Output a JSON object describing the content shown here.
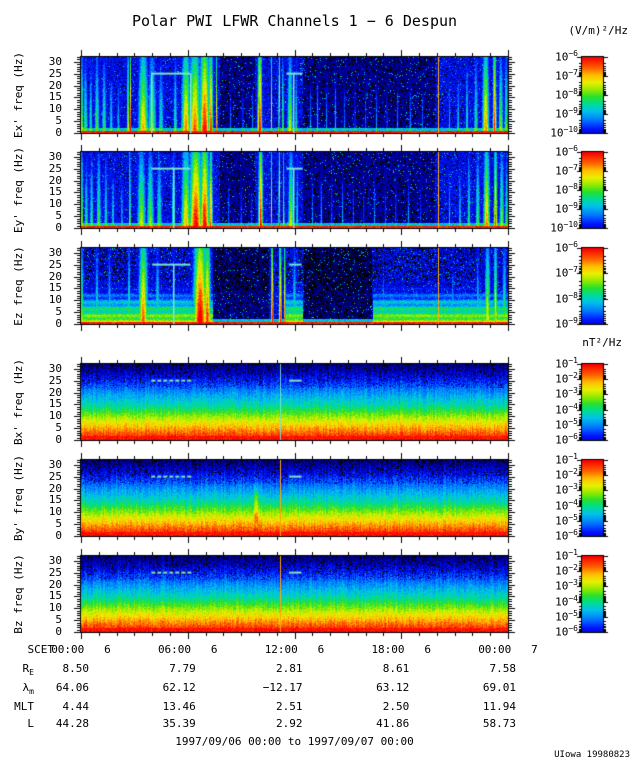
{
  "title": "Polar PWI LFWR Channels 1 − 6 Despun",
  "credit": "UIowa 19980823",
  "footer": {
    "range": "1997/09/06 00:00 to 1997/09/07 00:00"
  },
  "units": {
    "electric": "(V/m)²/Hz",
    "magnetic": "nT²/Hz"
  },
  "axis": {
    "scet_label": "SCET",
    "time_ticks": [
      {
        "time": "00:00",
        "day": "6",
        "hour": 0
      },
      {
        "time": "06:00",
        "day": "6",
        "hour": 6
      },
      {
        "time": "12:00",
        "day": "6",
        "hour": 12
      },
      {
        "time": "18:00",
        "day": "6",
        "hour": 18
      },
      {
        "time": "00:00",
        "day": "7",
        "hour": 24
      }
    ]
  },
  "ephemeris": {
    "rows": [
      {
        "label": "R",
        "sub": "E",
        "values": [
          "8.50",
          "7.79",
          "2.81",
          "8.61",
          "7.58"
        ]
      },
      {
        "label": "λ",
        "sub": "m",
        "values": [
          "64.06",
          "62.12",
          "−12.17",
          "63.12",
          "69.01"
        ]
      },
      {
        "label": "MLT",
        "sub": "",
        "values": [
          "4.44",
          "13.46",
          "2.51",
          "2.50",
          "11.94"
        ]
      },
      {
        "label": "L",
        "sub": "",
        "values": [
          "44.28",
          "35.39",
          "2.92",
          "41.86",
          "58.73"
        ]
      }
    ]
  },
  "chart_data": {
    "type": "heatmap",
    "subtype": "spectrogram-stack",
    "title": "Polar PWI LFWR Channels 1 − 6 Despun",
    "x_axis": {
      "label": "SCET",
      "xlim_hours": [
        0,
        24
      ],
      "major_ticks_hours": [
        0,
        6,
        12,
        18,
        24
      ],
      "minor_tick_hours": 1
    },
    "y_axis": {
      "ylim_hz": [
        0,
        32
      ],
      "major_ticks": [
        0,
        5,
        10,
        15,
        20,
        25,
        30
      ],
      "minor_tick": 1
    },
    "colormap": "rainbow (blue=low, red=high)",
    "panels": [
      {
        "name": "Ex",
        "ylabel": "Ex' freq (Hz)",
        "kind": "electric",
        "seed": 11,
        "colorbar": {
          "unit": "(V/m)²/Hz",
          "exponents": [
            -6,
            -7,
            -8,
            -9,
            -10
          ]
        },
        "features": {
          "streaks": [
            [
              0.05,
              0.06,
              0.7
            ],
            [
              0.25,
              0.1,
              0.55
            ],
            [
              0.55,
              0.08,
              0.5
            ],
            [
              0.9,
              0.1,
              0.6
            ],
            [
              1.3,
              0.1,
              0.55
            ],
            [
              1.7,
              0.08,
              0.45
            ],
            [
              2.1,
              0.06,
              0.4
            ],
            [
              2.65,
              0.06,
              0.75
            ],
            [
              2.78,
              0.03,
              0.95
            ],
            [
              3.5,
              0.22,
              0.8
            ],
            [
              4.0,
              0.18,
              0.65
            ],
            [
              4.5,
              0.12,
              0.5
            ],
            [
              5.3,
              0.08,
              0.55
            ],
            [
              5.9,
              0.2,
              0.85
            ],
            [
              6.4,
              0.25,
              0.9
            ],
            [
              6.95,
              0.22,
              1.0
            ],
            [
              7.3,
              0.1,
              0.95
            ],
            [
              7.62,
              0.04,
              0.85
            ],
            [
              8.4,
              0.04,
              0.3
            ],
            [
              9.1,
              0.04,
              0.3
            ],
            [
              9.65,
              0.04,
              0.35
            ],
            [
              10.05,
              0.1,
              1.0
            ],
            [
              10.7,
              0.03,
              0.85
            ],
            [
              11.15,
              0.04,
              0.95
            ],
            [
              11.35,
              0.03,
              0.8
            ],
            [
              11.75,
              0.12,
              0.7
            ],
            [
              12.1,
              0.06,
              0.5
            ],
            [
              12.9,
              0.03,
              0.35
            ],
            [
              13.3,
              0.04,
              0.4
            ],
            [
              13.8,
              0.03,
              0.35
            ],
            [
              14.3,
              0.04,
              0.4
            ],
            [
              14.8,
              0.03,
              0.35
            ],
            [
              15.4,
              0.03,
              0.35
            ],
            [
              16.0,
              0.03,
              0.3
            ],
            [
              16.6,
              0.03,
              0.35
            ],
            [
              17.2,
              0.03,
              0.3
            ],
            [
              17.8,
              0.03,
              0.35
            ],
            [
              18.5,
              0.04,
              0.35
            ],
            [
              19.2,
              0.03,
              0.3
            ],
            [
              20.7,
              0.04,
              0.4
            ],
            [
              21.2,
              0.05,
              0.45
            ],
            [
              21.7,
              0.07,
              0.5
            ],
            [
              22.2,
              0.09,
              0.55
            ],
            [
              22.75,
              0.15,
              0.85
            ],
            [
              23.25,
              0.08,
              0.95
            ],
            [
              23.6,
              0.1,
              0.65
            ],
            [
              23.9,
              0.08,
              0.6
            ]
          ],
          "quiet": [
            [
              7.8,
              9.8,
              0.5
            ],
            [
              12.45,
              19.9,
              0.5
            ]
          ],
          "lines": [
            [
              20.05,
              "orange"
            ]
          ],
          "cyan_h": [
            [
              3.95,
              6.15
            ],
            [
              11.55,
              12.45
            ]
          ],
          "cyan_v": [
            3.95,
            6.15,
            11.9
          ]
        }
      },
      {
        "name": "Ey",
        "ylabel": "Ey' freq (Hz)",
        "kind": "electric",
        "seed": 22,
        "colorbar": {
          "unit": "(V/m)²/Hz",
          "exponents": [
            -6,
            -7,
            -8,
            -9,
            -10
          ]
        },
        "features": {
          "streaks": [
            [
              0.05,
              0.06,
              0.7
            ],
            [
              0.3,
              0.08,
              0.5
            ],
            [
              0.6,
              0.08,
              0.55
            ],
            [
              1.0,
              0.1,
              0.6
            ],
            [
              1.4,
              0.08,
              0.5
            ],
            [
              1.8,
              0.07,
              0.45
            ],
            [
              2.3,
              0.05,
              0.4
            ],
            [
              2.75,
              0.03,
              0.9
            ],
            [
              3.4,
              0.18,
              0.7
            ],
            [
              3.9,
              0.15,
              0.65
            ],
            [
              4.4,
              0.12,
              0.55
            ],
            [
              5.2,
              0.08,
              0.6
            ],
            [
              5.9,
              0.2,
              0.8
            ],
            [
              6.45,
              0.28,
              1.0
            ],
            [
              6.95,
              0.2,
              1.0
            ],
            [
              7.3,
              0.08,
              0.9
            ],
            [
              8.3,
              0.04,
              0.3
            ],
            [
              9.0,
              0.04,
              0.32
            ],
            [
              9.6,
              0.04,
              0.3
            ],
            [
              10.1,
              0.1,
              1.0
            ],
            [
              10.7,
              0.03,
              0.85
            ],
            [
              11.15,
              0.04,
              0.95
            ],
            [
              11.4,
              0.03,
              0.8
            ],
            [
              11.8,
              0.12,
              0.7
            ],
            [
              12.15,
              0.05,
              0.5
            ],
            [
              13.0,
              0.03,
              0.38
            ],
            [
              13.5,
              0.04,
              0.4
            ],
            [
              14.1,
              0.03,
              0.35
            ],
            [
              14.7,
              0.03,
              0.38
            ],
            [
              15.3,
              0.03,
              0.33
            ],
            [
              15.9,
              0.03,
              0.3
            ],
            [
              16.5,
              0.03,
              0.35
            ],
            [
              17.1,
              0.03,
              0.3
            ],
            [
              17.7,
              0.03,
              0.33
            ],
            [
              18.4,
              0.04,
              0.35
            ],
            [
              19.1,
              0.03,
              0.3
            ],
            [
              20.7,
              0.04,
              0.42
            ],
            [
              21.3,
              0.05,
              0.48
            ],
            [
              21.8,
              0.07,
              0.55
            ],
            [
              22.3,
              0.09,
              0.6
            ],
            [
              22.8,
              0.14,
              0.85
            ],
            [
              23.3,
              0.08,
              0.9
            ],
            [
              23.65,
              0.1,
              0.65
            ],
            [
              23.92,
              0.07,
              0.55
            ]
          ],
          "quiet": [
            [
              7.8,
              9.8,
              0.5
            ],
            [
              12.5,
              19.9,
              0.55
            ]
          ],
          "lines": [
            [
              20.05,
              "orange"
            ]
          ],
          "cyan_h": [
            [
              3.95,
              6.15
            ],
            [
              11.55,
              12.45
            ]
          ],
          "cyan_v": [
            5.15,
            11.9
          ]
        }
      },
      {
        "name": "Ez",
        "ylabel": "Ez freq (Hz)",
        "kind": "electric",
        "seed": 33,
        "topdark": true,
        "colorbar": {
          "unit": "(V/m)²/Hz",
          "exponents": [
            -6,
            -7,
            -8,
            -9
          ]
        },
        "features": {
          "streaks": [
            [
              0.05,
              0.06,
              0.7
            ],
            [
              0.9,
              0.08,
              0.55
            ],
            [
              1.6,
              0.07,
              0.5
            ],
            [
              2.7,
              0.05,
              0.65
            ],
            [
              3.5,
              0.2,
              0.9
            ],
            [
              4.3,
              0.1,
              0.55
            ],
            [
              5.2,
              0.06,
              0.5
            ],
            [
              6.7,
              0.3,
              1.05
            ],
            [
              7.1,
              0.15,
              0.95
            ],
            [
              10.75,
              0.05,
              1.0
            ],
            [
              11.2,
              0.06,
              0.95
            ],
            [
              11.45,
              0.04,
              0.9
            ],
            [
              12.0,
              0.08,
              0.55
            ],
            [
              17.0,
              0.04,
              0.4
            ],
            [
              20.9,
              0.05,
              0.45
            ],
            [
              22.3,
              0.07,
              0.5
            ],
            [
              22.85,
              0.12,
              0.75
            ],
            [
              23.3,
              0.08,
              0.8
            ],
            [
              23.8,
              0.1,
              0.6
            ]
          ],
          "quiet": [
            [
              7.4,
              10.55,
              0.45
            ],
            [
              12.55,
              16.35,
              0.3
            ]
          ],
          "wash": [
            [
              0,
              7.4
            ],
            [
              11.5,
              12.5
            ],
            [
              16.4,
              24
            ]
          ],
          "lines": [
            [
              20.05,
              "orange"
            ]
          ],
          "cyan_h": [
            [
              4.0,
              6.15
            ],
            [
              11.7,
              12.4
            ]
          ],
          "cyan_v": [
            5.15
          ]
        }
      },
      {
        "name": "Bx",
        "ylabel": "Bx' freq (Hz)",
        "kind": "magnetic",
        "seed": 44,
        "colorbar": {
          "unit": "nT²/Hz",
          "exponents": [
            -1,
            -2,
            -3,
            -4,
            -5,
            -6
          ]
        },
        "features": {
          "lines": [
            [
              11.2,
              "cyan"
            ]
          ],
          "cyan_dash": [
            [
              3.95,
              6.15
            ]
          ],
          "cyan_h": [
            [
              11.7,
              12.4
            ]
          ]
        }
      },
      {
        "name": "By",
        "ylabel": "By' freq (Hz)",
        "kind": "magnetic",
        "seed": 55,
        "blob": true,
        "colorbar": {
          "unit": "nT²/Hz",
          "exponents": [
            -1,
            -2,
            -3,
            -4,
            -5,
            -6
          ]
        },
        "features": {
          "lines": [
            [
              11.2,
              "orange"
            ]
          ],
          "cyan_dash": [
            [
              3.95,
              6.15
            ]
          ],
          "cyan_h": [
            [
              11.7,
              12.4
            ]
          ]
        }
      },
      {
        "name": "Bz",
        "ylabel": "Bz freq (Hz)",
        "kind": "magnetic",
        "seed": 66,
        "colorbar": {
          "unit": "nT²/Hz",
          "exponents": [
            -1,
            -2,
            -3,
            -4,
            -5,
            -6
          ]
        },
        "features": {
          "lines": [
            [
              11.2,
              "orange"
            ]
          ],
          "cyan_dash": [
            [
              3.95,
              6.15
            ]
          ],
          "cyan_h": [
            [
              11.7,
              12.4
            ]
          ]
        }
      }
    ]
  }
}
